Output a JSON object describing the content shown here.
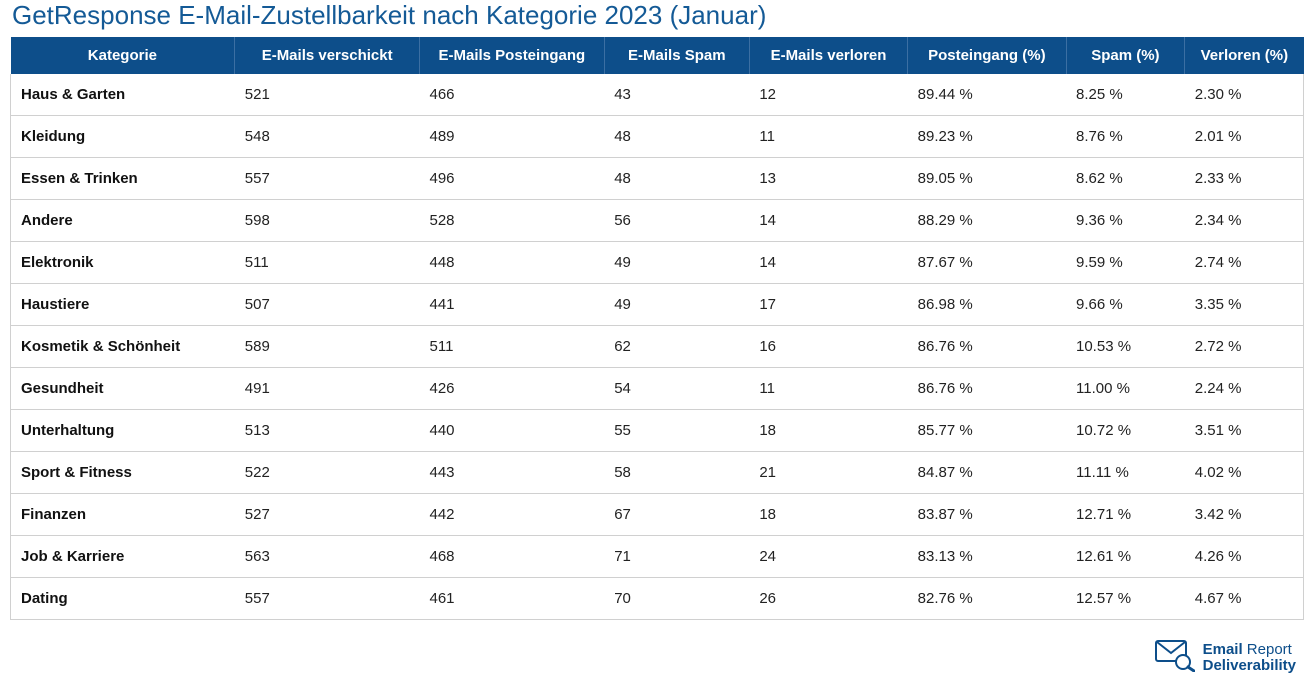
{
  "title": "GetResponse E-Mail-Zustellbarkeit nach Kategorie 2023 (Januar)",
  "colors": {
    "title": "#145a96",
    "header_bg": "#0d4e8a",
    "header_text": "#ffffff",
    "row_border": "#d0d0d0",
    "cell_text": "#222222",
    "cat_text": "#111111",
    "logo": "#0d4e8a"
  },
  "columns": [
    "Kategorie",
    "E-Mails verschickt",
    "E-Mails Posteingang",
    "E-Mails Spam",
    "E-Mails verloren",
    "Posteingang (%)",
    "Spam (%)",
    "Verloren (%)"
  ],
  "rows": [
    [
      "Haus & Garten",
      "521",
      "466",
      "43",
      "12",
      "89.44 %",
      "8.25 %",
      "2.30 %"
    ],
    [
      "Kleidung",
      "548",
      "489",
      "48",
      "11",
      "89.23 %",
      "8.76 %",
      "2.01 %"
    ],
    [
      "Essen & Trinken",
      "557",
      "496",
      "48",
      "13",
      "89.05 %",
      "8.62 %",
      "2.33 %"
    ],
    [
      "Andere",
      "598",
      "528",
      "56",
      "14",
      "88.29 %",
      "9.36 %",
      "2.34 %"
    ],
    [
      "Elektronik",
      "511",
      "448",
      "49",
      "14",
      "87.67 %",
      "9.59 %",
      "2.74 %"
    ],
    [
      "Haustiere",
      "507",
      "441",
      "49",
      "17",
      "86.98 %",
      "9.66 %",
      "3.35 %"
    ],
    [
      "Kosmetik & Schönheit",
      "589",
      "511",
      "62",
      "16",
      "86.76 %",
      "10.53 %",
      "2.72 %"
    ],
    [
      "Gesundheit",
      "491",
      "426",
      "54",
      "11",
      "86.76 %",
      "11.00 %",
      "2.24 %"
    ],
    [
      "Unterhaltung",
      "513",
      "440",
      "55",
      "18",
      "85.77 %",
      "10.72 %",
      "3.51 %"
    ],
    [
      "Sport & Fitness",
      "522",
      "443",
      "58",
      "21",
      "84.87 %",
      "11.11 %",
      "4.02 %"
    ],
    [
      "Finanzen",
      "527",
      "442",
      "67",
      "18",
      "83.87 %",
      "12.71 %",
      "3.42 %"
    ],
    [
      "Job & Karriere",
      "563",
      "468",
      "71",
      "24",
      "83.13 %",
      "12.61 %",
      "4.26 %"
    ],
    [
      "Dating",
      "557",
      "461",
      "70",
      "26",
      "82.76 %",
      "12.57 %",
      "4.67 %"
    ]
  ],
  "logo": {
    "line1a": "Email",
    "line1b": " Report",
    "line2": "Deliverability"
  }
}
